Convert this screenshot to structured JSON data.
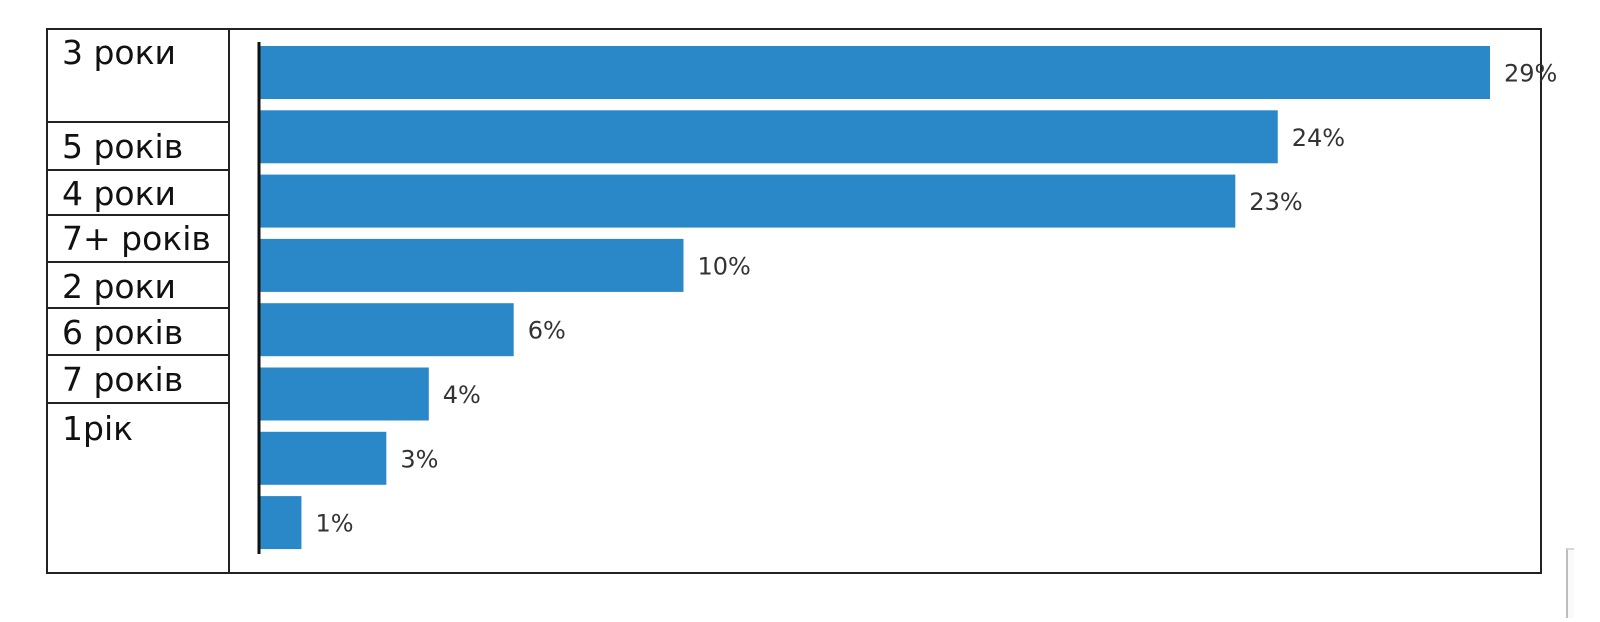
{
  "chart_data": {
    "type": "bar",
    "orientation": "horizontal",
    "categories": [
      "3 роки",
      "5 років",
      "4 роки",
      "7+ років",
      "2 роки",
      "6 років",
      "7 років",
      "1рік"
    ],
    "values": [
      29,
      24,
      23,
      10,
      6,
      4,
      3,
      1
    ],
    "value_labels": [
      "29%",
      "24%",
      "23%",
      "10%",
      "6%",
      "4%",
      "3%",
      "1%"
    ],
    "unit": "%",
    "title": "",
    "xlabel": "",
    "ylabel": "",
    "xlim": [
      0,
      29
    ],
    "grid": false,
    "legend": "none",
    "bar_color": "#2B88C8",
    "axis_color": "#111111",
    "label_color": "#333333"
  }
}
